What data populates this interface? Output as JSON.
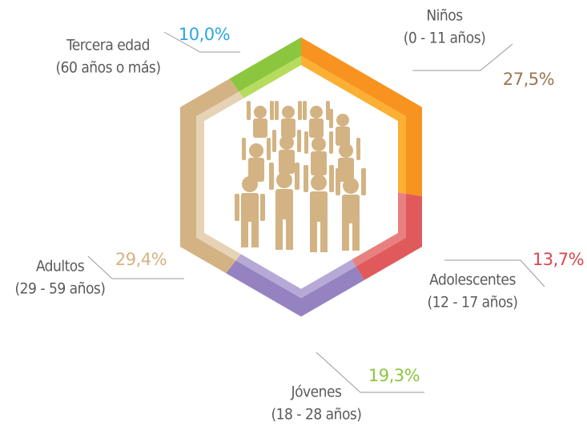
{
  "chart_data": {
    "type": "hexagon-donut",
    "categories": [
      "Niños",
      "Adolescentes",
      "Jóvenes",
      "Adultos",
      "Tercera edad"
    ],
    "category_ranges": [
      "(0 - 11 años)",
      "(12 - 17 años)",
      "(18 - 28 años)",
      "(29 - 59 años)",
      "(60 años o más)"
    ],
    "values": [
      27.5,
      13.7,
      19.3,
      29.4,
      10.0
    ],
    "value_labels": [
      "27,5%",
      "13,7%",
      "19,3%",
      "29,4%",
      "10,0%"
    ],
    "colors": [
      "#f7931e",
      "#e05a5c",
      "#9582c0",
      "#d3b383",
      "#8cc63f"
    ],
    "highlight_colors": [
      "#fbb034",
      "#e88080",
      "#b7a9d6",
      "#e6d3b5",
      "#b5dc5c"
    ],
    "value_label_colors": [
      "#9c7650",
      "#d9464d",
      "#8cc63f",
      "#d3b383",
      "#29a8e0"
    ]
  }
}
